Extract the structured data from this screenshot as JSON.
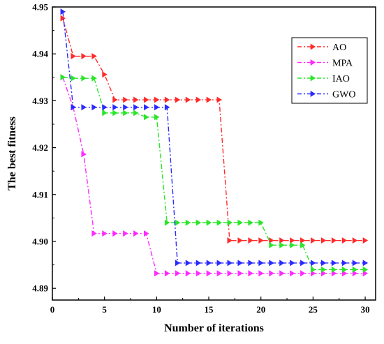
{
  "chart_data": {
    "type": "line",
    "xlabel": "Number  of  iterations",
    "ylabel": "The  best  fitness",
    "xlim": [
      0,
      31
    ],
    "ylim": [
      4.8875,
      4.95
    ],
    "xticks": [
      0,
      5,
      10,
      15,
      20,
      25,
      30
    ],
    "yticks": [
      4.89,
      4.9,
      4.91,
      4.92,
      4.93,
      4.94,
      4.95
    ],
    "ytick_labels": [
      "4.89",
      "4.90",
      "4.91",
      "4.92",
      "4.93",
      "4.94",
      "4.95"
    ],
    "grid": false,
    "legend_position": "top-right",
    "x": [
      1,
      2,
      3,
      4,
      5,
      6,
      7,
      8,
      9,
      10,
      11,
      12,
      13,
      14,
      15,
      16,
      17,
      18,
      19,
      20,
      21,
      22,
      23,
      24,
      25,
      26,
      27,
      28,
      29,
      30
    ],
    "series": [
      {
        "name": "AO",
        "color": "#ff2a2a",
        "marker": "right-triangle",
        "values": [
          4.9476,
          4.9395,
          4.9395,
          4.9395,
          4.9356,
          4.9302,
          4.9302,
          4.9302,
          4.9302,
          4.9302,
          4.9302,
          4.9302,
          4.9302,
          4.9302,
          4.9302,
          4.9302,
          4.9002,
          4.9002,
          4.9002,
          4.9002,
          4.9002,
          4.9002,
          4.9002,
          4.9002,
          4.9002,
          4.9002,
          4.9002,
          4.9002,
          4.9002,
          4.9002
        ]
      },
      {
        "name": "MPA",
        "color": "#ff2aff",
        "marker": "right-triangle",
        "values": [
          4.935,
          4.9286,
          4.9186,
          4.9017,
          4.9017,
          4.9017,
          4.9017,
          4.9017,
          4.9017,
          4.8932,
          4.8932,
          4.8932,
          4.8932,
          4.8932,
          4.8932,
          4.8932,
          4.8932,
          4.8932,
          4.8932,
          4.8932,
          4.8932,
          4.8932,
          4.8932,
          4.8932,
          4.8932,
          4.8932,
          4.8932,
          4.8932,
          4.8932,
          4.8932
        ]
      },
      {
        "name": "IAO",
        "color": "#2ae52a",
        "marker": "right-triangle",
        "values": [
          4.935,
          4.9348,
          4.9348,
          4.9348,
          4.9274,
          4.9274,
          4.9274,
          4.9274,
          4.9265,
          4.9265,
          4.904,
          4.904,
          4.904,
          4.904,
          4.904,
          4.904,
          4.904,
          4.904,
          4.904,
          4.904,
          4.8992,
          4.8992,
          4.8992,
          4.8992,
          4.894,
          4.894,
          4.894,
          4.894,
          4.894,
          4.894
        ]
      },
      {
        "name": "GWO",
        "color": "#2a2aff",
        "marker": "right-triangle",
        "values": [
          4.949,
          4.9286,
          4.9286,
          4.9286,
          4.9286,
          4.9286,
          4.9286,
          4.9286,
          4.9286,
          4.9286,
          4.9286,
          4.8954,
          4.8954,
          4.8954,
          4.8954,
          4.8954,
          4.8954,
          4.8954,
          4.8954,
          4.8954,
          4.8954,
          4.8954,
          4.8954,
          4.8954,
          4.8954,
          4.8954,
          4.8954,
          4.8954,
          4.8954,
          4.8954
        ]
      }
    ]
  }
}
